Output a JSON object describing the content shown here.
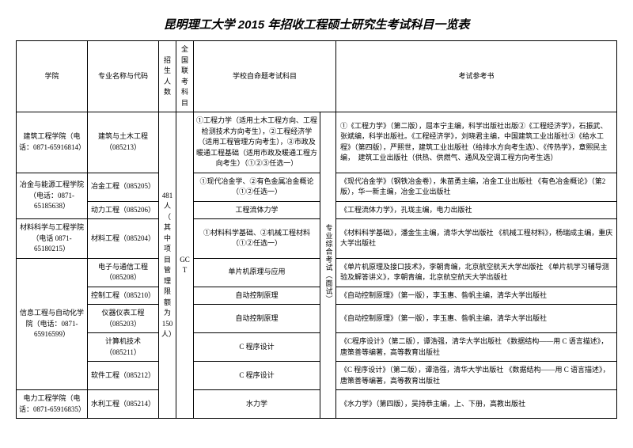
{
  "title": "昆明理工大学 2015 年招收工程硕士研究生考试科目一览表",
  "headers": {
    "col1": "学院",
    "col2": "专业名称与代码",
    "col3": "招生人数",
    "col4": "全国联考科目",
    "col5": "学校自命题考试科目",
    "col6": "考试参考书"
  },
  "quota": "481人（其中项目管理限额为150人）",
  "exam": "GCT",
  "interview": "专业综合考试（面试）",
  "depts": {
    "d1": {
      "name": "建筑工程学院（电话：0871-65916814）",
      "major": "建筑与土木工程（085213）",
      "subj": "①工程力学（适用土木工程方向、工程检测技术方向考生），②工程经济学（适用工程管理方向考生），③市政及暖通工程基础（适用市政及暖通工程方向考生）（①②③任选一）",
      "ref": "①《工程力学》（第二版），屈本宁主编，科学出版社出版②《工程经济学》，石振武、张斌编，科学出版社。《工程经济学》，刘晓君主编，中国建筑工业出版社③《给水工程》（第四版），严熙世，建筑工业出版社（给排水方向考生选）、《传热学》，章熙民主编，　建筑工业出版社（供热、供燃气、通风及空调工程方向考生选）"
    },
    "d2": {
      "name": "冶金与能源工程学院（电话：0871-65185638）",
      "m1": "冶金工程（085205）",
      "m2": "动力工程（085206）",
      "s1": "①现代冶金学、②有色金属冶金概论（①②任选一）",
      "s2": "工程流体力学",
      "r1": "《现代冶金学》（钢铁冶金卷），朱苗勇主编，冶金工业出版社\n《有色冶金概论》（第2版），华一新主编，冶金工业出版社",
      "r2": "《工程流体力学》，孔珑主编，电力出版社"
    },
    "d3": {
      "name": "材料科学与工程学院（电话 0871-65180215）",
      "major": "材料工程（085204）",
      "subj": "①材料科学基础、②机械工程材料（①②任选一）",
      "ref": "《材料科学基础》，潘金生主编，清华大学出版社\n《机械工程材料》，杨瑞成主编，重庆大学出版社"
    },
    "d4": {
      "name": "信息工程与自动化学院（电话：0871-65916599）",
      "m1": "电子与通信工程（085208）",
      "m2": "控制工程（085210）",
      "m3": "仪器仪表工程（085203）",
      "m4": "计算机技术（085211）",
      "m5": "软件工程（085212）",
      "s1": "单片机原理与应用",
      "s2": "自动控制原理",
      "s3": "自动控制原理",
      "s4": "C 程序设计",
      "s5": "C 程序设计",
      "r1": "《单片机原理及接口技术》，李朝青编，北京航空航天大学出版社\n《单片机学习辅导测验及解答讲义》，李朝青编，北京航空航天大学出版社",
      "r2": "《自动控制原理》（第一版），李玉惠、昝帆主编，清华大学出版社",
      "r3": "《自动控制原理》（第一版），李玉惠、昝帆主编，清华大学出版社",
      "r4": "《C程序设计》（第二版），谭浩强，清华大学出版社\n《数据结构——用 C 语言描述》，唐策善等编著，高等教育出版社",
      "r5": "《C 程序设计》（第二版），谭浩强，清华大学出版社\n《数据结构——用 C 语言描述》，唐策善等编著，高等教育出版社"
    },
    "d5": {
      "name": "电力工程学院（电话：0871-65916835）",
      "major": "水利工程（085214）",
      "subj": "水力学",
      "ref": "《水力学》（第四版），吴持恭主编，上、下册，高教出版社"
    }
  }
}
